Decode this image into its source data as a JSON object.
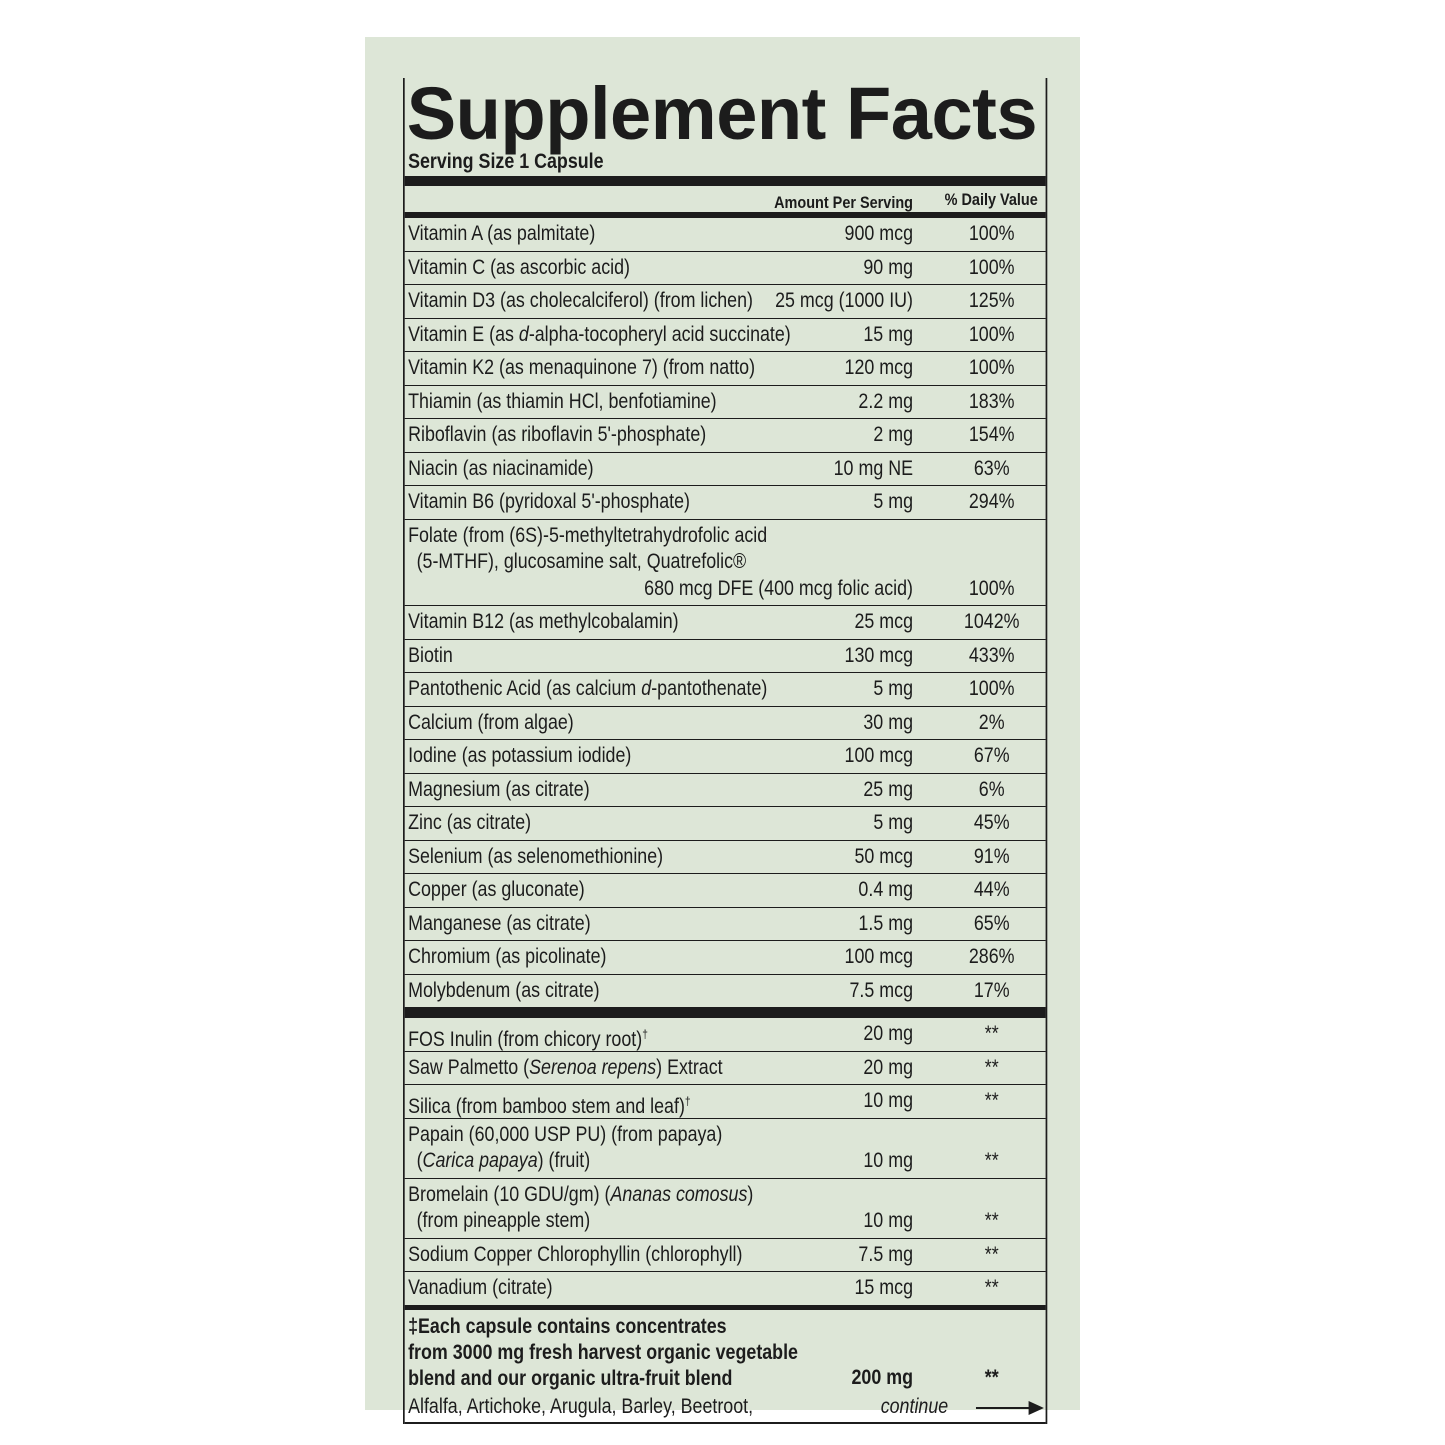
{
  "title": "Supplement Facts",
  "serving_size": "Serving Size 1 Capsule",
  "columns": {
    "amount": "Amount Per Serving",
    "daily_value": "% Daily Value"
  },
  "sections": [
    {
      "rows": [
        {
          "lines": [
            [
              "Vitamin A (as palmitate)"
            ]
          ],
          "amount": "900 mcg",
          "dv": "100%"
        },
        {
          "lines": [
            [
              "Vitamin C (as ascorbic acid)"
            ]
          ],
          "amount": "90 mg",
          "dv": "100%"
        },
        {
          "lines": [
            [
              "Vitamin D3 (as cholecalciferol) (from lichen)"
            ]
          ],
          "amount": "25 mcg (1000 IU)",
          "dv": "125%"
        },
        {
          "lines": [
            [
              "Vitamin E (as ",
              {
                "text": "d",
                "style": "italic"
              },
              "-alpha-tocopheryl acid succinate)"
            ]
          ],
          "amount": "15 mg",
          "dv": "100%"
        },
        {
          "lines": [
            [
              "Vitamin K2 (as menaquinone 7) (from natto)"
            ]
          ],
          "amount": "120 mcg",
          "dv": "100%"
        },
        {
          "lines": [
            [
              "Thiamin (as thiamin HCl, benfotiamine)"
            ]
          ],
          "amount": "2.2 mg",
          "dv": "183%"
        },
        {
          "lines": [
            [
              "Riboflavin (as riboflavin 5'-phosphate)"
            ]
          ],
          "amount": "2 mg",
          "dv": "154%"
        },
        {
          "lines": [
            [
              "Niacin (as niacinamide)"
            ]
          ],
          "amount": "10 mg NE",
          "dv": "63%"
        },
        {
          "lines": [
            [
              "Vitamin B6 (pyridoxal 5'-phosphate)"
            ]
          ],
          "amount": "5 mg",
          "dv": "294%"
        },
        {
          "lines": [
            [
              "Folate (from (6S)-5-methyltetrahydrofolic acid"
            ],
            [
              "(5-MTHF), glucosamine salt, Quatrefolic®"
            ]
          ],
          "amount": "680 mcg DFE  (400 mcg folic acid)",
          "dv": "100%"
        },
        {
          "lines": [
            [
              "Vitamin B12 (as methylcobalamin)"
            ]
          ],
          "amount": "25 mcg",
          "dv": "1042%"
        },
        {
          "lines": [
            [
              "Biotin"
            ]
          ],
          "amount": "130 mcg",
          "dv": "433%"
        },
        {
          "lines": [
            [
              "Pantothenic Acid (as calcium ",
              {
                "text": "d",
                "style": "italic"
              },
              "-pantothenate)"
            ]
          ],
          "amount": "5 mg",
          "dv": "100%"
        },
        {
          "lines": [
            [
              "Calcium (from algae)"
            ]
          ],
          "amount": "30 mg",
          "dv": "2%"
        },
        {
          "lines": [
            [
              "Iodine (as potassium iodide)"
            ]
          ],
          "amount": "100 mcg",
          "dv": "67%"
        },
        {
          "lines": [
            [
              "Magnesium (as citrate)"
            ]
          ],
          "amount": "25 mg",
          "dv": "6%"
        },
        {
          "lines": [
            [
              "Zinc (as citrate)"
            ]
          ],
          "amount": "5 mg",
          "dv": "45%"
        },
        {
          "lines": [
            [
              "Selenium (as selenomethionine)"
            ]
          ],
          "amount": "50 mcg",
          "dv": "91%"
        },
        {
          "lines": [
            [
              "Copper (as gluconate)"
            ]
          ],
          "amount": "0.4 mg",
          "dv": "44%"
        },
        {
          "lines": [
            [
              "Manganese (as citrate)"
            ]
          ],
          "amount": "1.5 mg",
          "dv": "65%"
        },
        {
          "lines": [
            [
              "Chromium (as picolinate)"
            ]
          ],
          "amount": "100 mcg",
          "dv": "286%"
        },
        {
          "lines": [
            [
              "Molybdenum (as citrate)"
            ]
          ],
          "amount": "7.5 mcg",
          "dv": "17%"
        }
      ]
    },
    {
      "rows": [
        {
          "lines": [
            [
              "FOS Inulin (from chicory root)",
              {
                "text": "†",
                "style": "superscript"
              }
            ]
          ],
          "amount": "20 mg",
          "dv": "**"
        },
        {
          "lines": [
            [
              "Saw Palmetto (",
              {
                "text": "Serenoa repens",
                "style": "italic"
              },
              ") Extract"
            ]
          ],
          "amount": "20 mg",
          "dv": "**"
        },
        {
          "lines": [
            [
              "Silica (from bamboo stem and leaf)",
              {
                "text": "†",
                "style": "superscript"
              }
            ]
          ],
          "amount": "10 mg",
          "dv": "**"
        },
        {
          "lines": [
            [
              "Papain (60,000 USP PU) (from papaya)"
            ],
            [
              "(",
              {
                "text": "Carica papaya",
                "style": "italic"
              },
              ") (fruit)"
            ]
          ],
          "amount": "10 mg",
          "dv": "**"
        },
        {
          "lines": [
            [
              "Bromelain (10 GDU/gm) (",
              {
                "text": "Ananas comosus",
                "style": "italic"
              },
              ")"
            ],
            [
              "(from pineapple stem)"
            ]
          ],
          "amount": "10 mg",
          "dv": "**"
        },
        {
          "lines": [
            [
              "Sodium Copper Chlorophyllin (chlorophyll)"
            ]
          ],
          "amount": "7.5 mg",
          "dv": "**"
        },
        {
          "lines": [
            [
              "Vanadium (citrate)"
            ]
          ],
          "amount": "15 mcg",
          "dv": "**"
        }
      ]
    }
  ],
  "footnote": {
    "lines": [
      "‡Each capsule contains concentrates",
      "from 3000 mg fresh harvest organic vegetable",
      "blend and our organic ultra-fruit blend"
    ],
    "amount": "200 mg",
    "dv": "**"
  },
  "ingredients": "Alfalfa, Artichoke, Arugula, Barley, Beetroot,",
  "continue": "continue"
}
